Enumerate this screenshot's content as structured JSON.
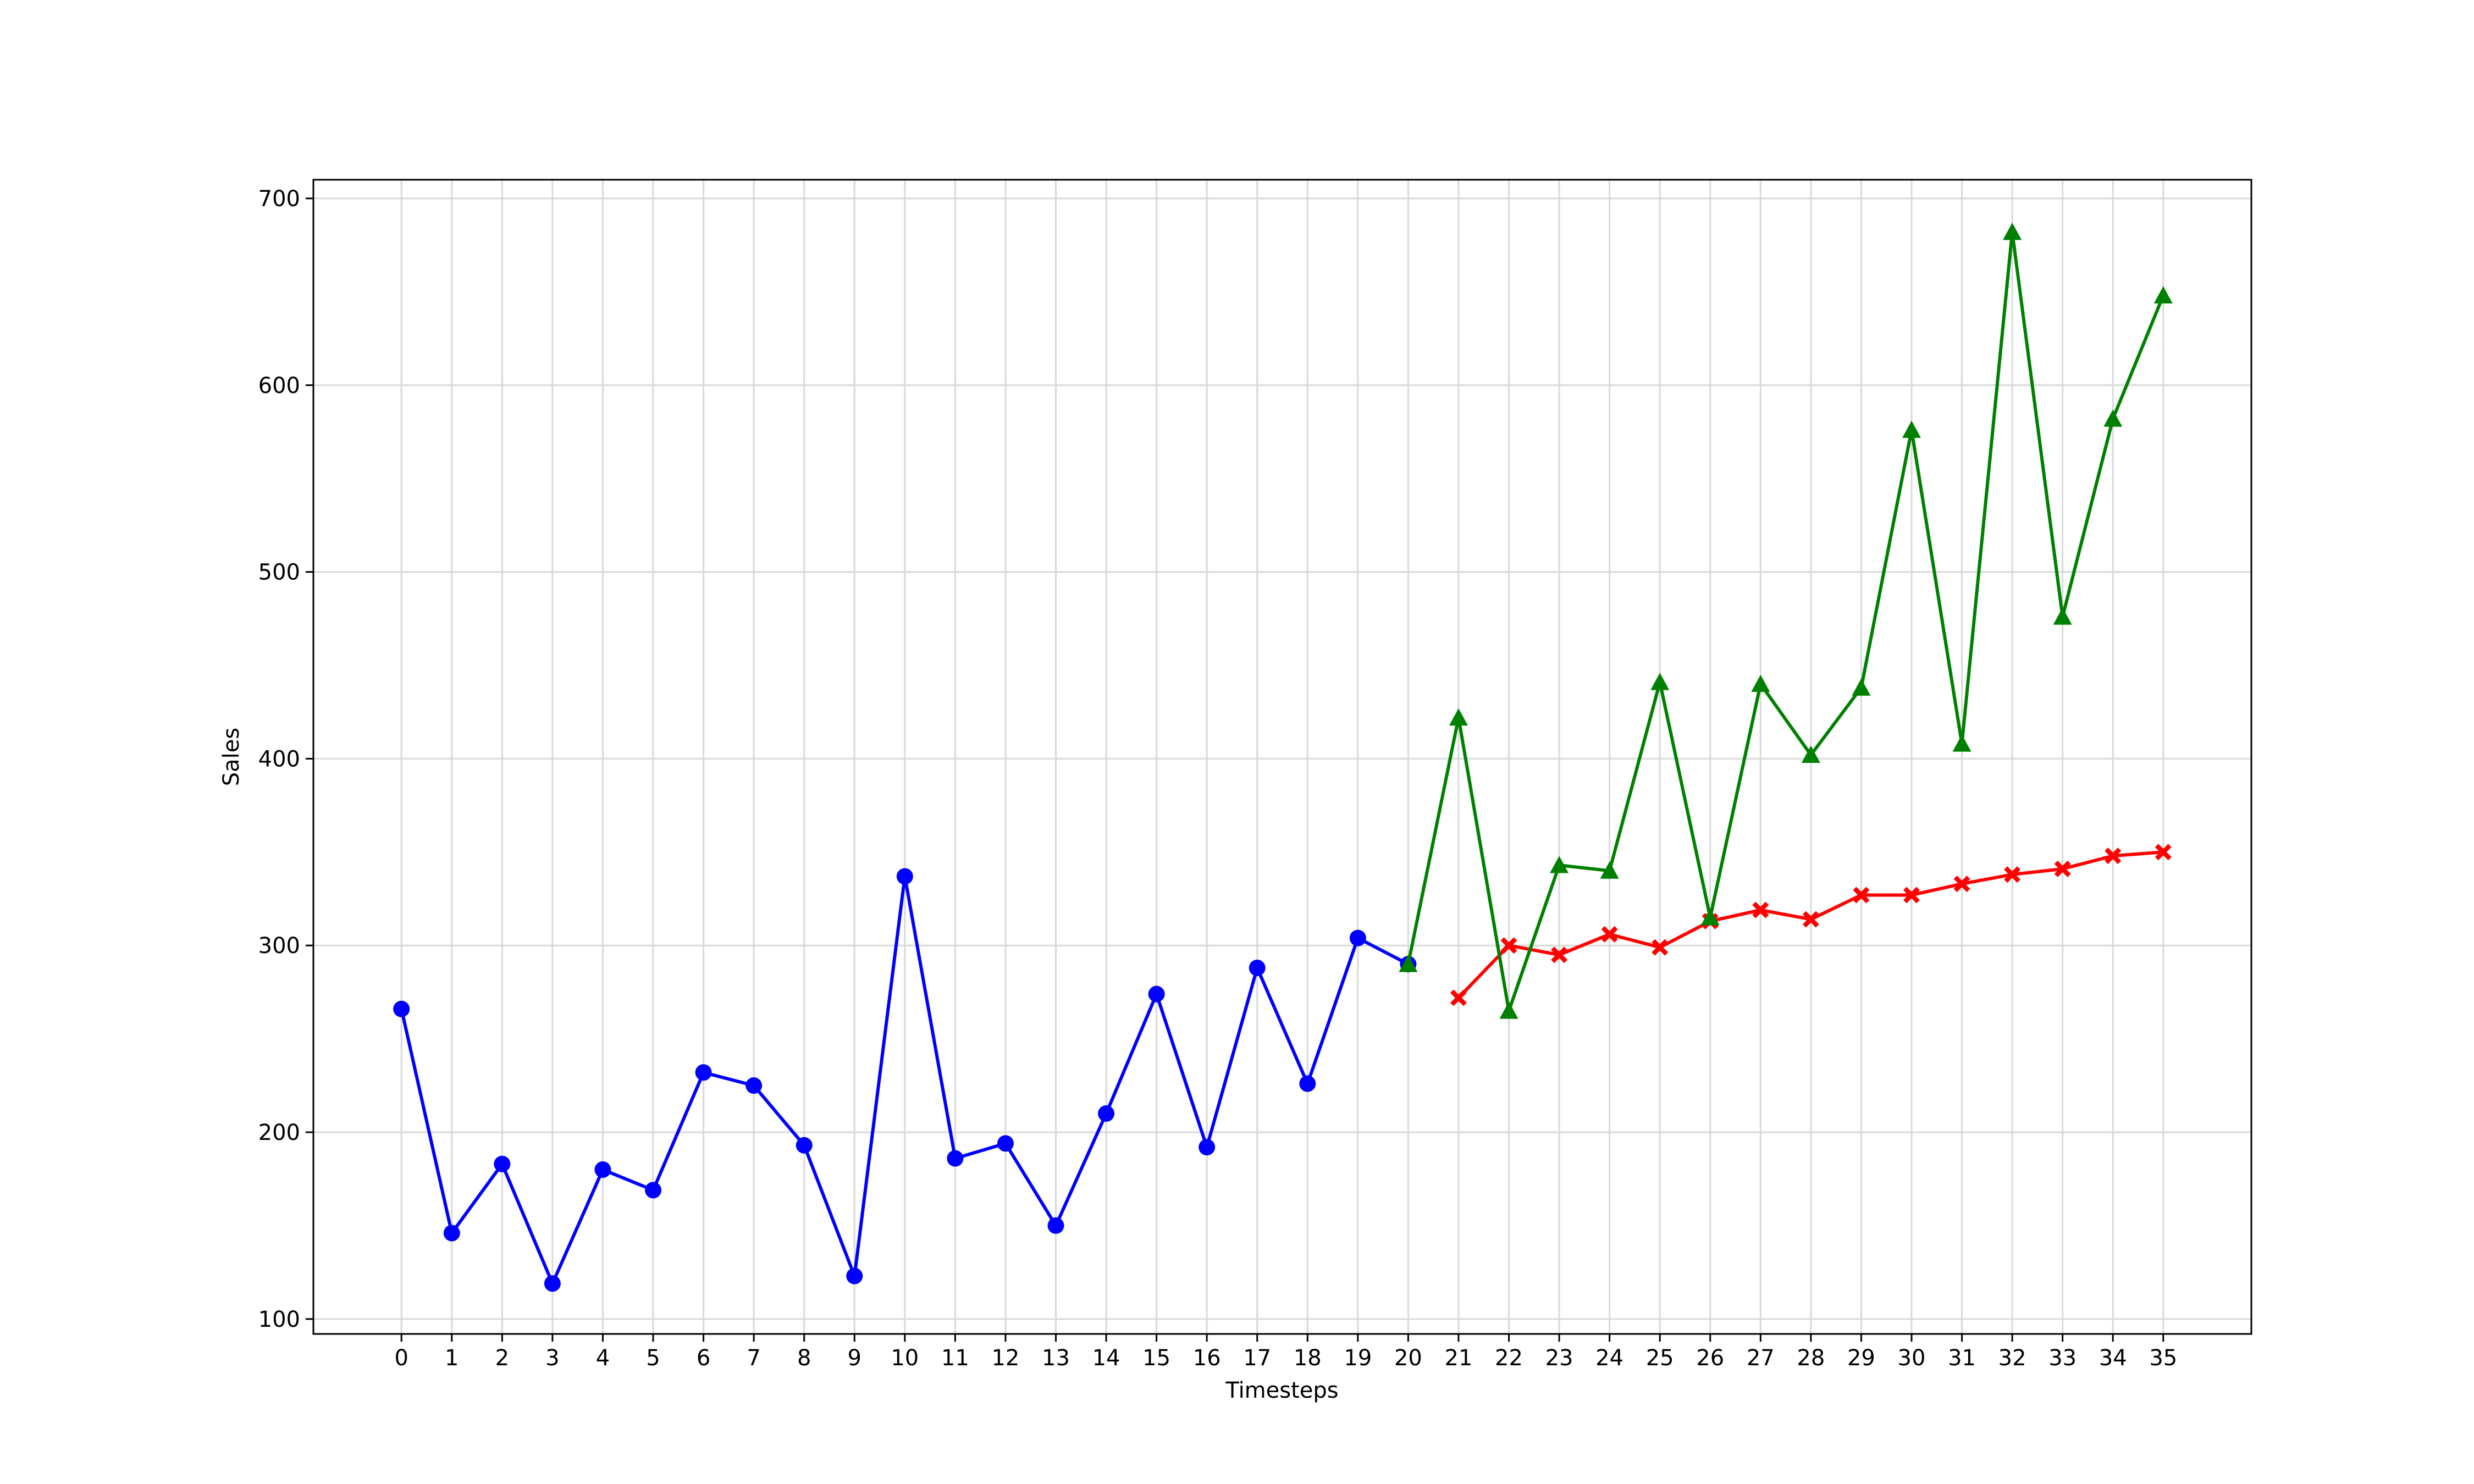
{
  "chart_data": {
    "type": "line",
    "title": "",
    "xlabel": "Timesteps",
    "ylabel": "Sales",
    "xlim": [
      -1.75,
      36.75
    ],
    "ylim": [
      92,
      710
    ],
    "xticks": [
      0,
      1,
      2,
      3,
      4,
      5,
      6,
      7,
      8,
      9,
      10,
      11,
      12,
      13,
      14,
      15,
      16,
      17,
      18,
      19,
      20,
      21,
      22,
      23,
      24,
      25,
      26,
      27,
      28,
      29,
      30,
      31,
      32,
      33,
      34,
      35
    ],
    "yticks": [
      100,
      200,
      300,
      400,
      500,
      600,
      700
    ],
    "grid": true,
    "legend": "none",
    "series": [
      {
        "color": "#0000ff",
        "marker": "circle",
        "x": [
          0,
          1,
          2,
          3,
          4,
          5,
          6,
          7,
          8,
          9,
          10,
          11,
          12,
          13,
          14,
          15,
          16,
          17,
          18,
          19,
          20
        ],
        "y": [
          266,
          146,
          183,
          119,
          180,
          169,
          232,
          225,
          193,
          123,
          337,
          186,
          194,
          150,
          210,
          274,
          192,
          288,
          226,
          304,
          290
        ]
      },
      {
        "color": "#ff0000",
        "marker": "x-filled",
        "x": [
          21,
          22,
          23,
          24,
          25,
          26,
          27,
          28,
          29,
          30,
          31,
          32,
          33,
          34,
          35
        ],
        "y": [
          272,
          300,
          295,
          306,
          299,
          313,
          319,
          314,
          327,
          327,
          333,
          338,
          341,
          348,
          350
        ]
      },
      {
        "color": "#008000",
        "marker": "triangle",
        "x": [
          20,
          21,
          22,
          23,
          24,
          25,
          26,
          27,
          28,
          29,
          30,
          31,
          32,
          33,
          34,
          35
        ],
        "y": [
          290,
          422,
          265,
          343,
          340,
          441,
          315,
          440,
          402,
          438,
          576,
          408,
          682,
          476,
          582,
          648
        ]
      }
    ]
  }
}
